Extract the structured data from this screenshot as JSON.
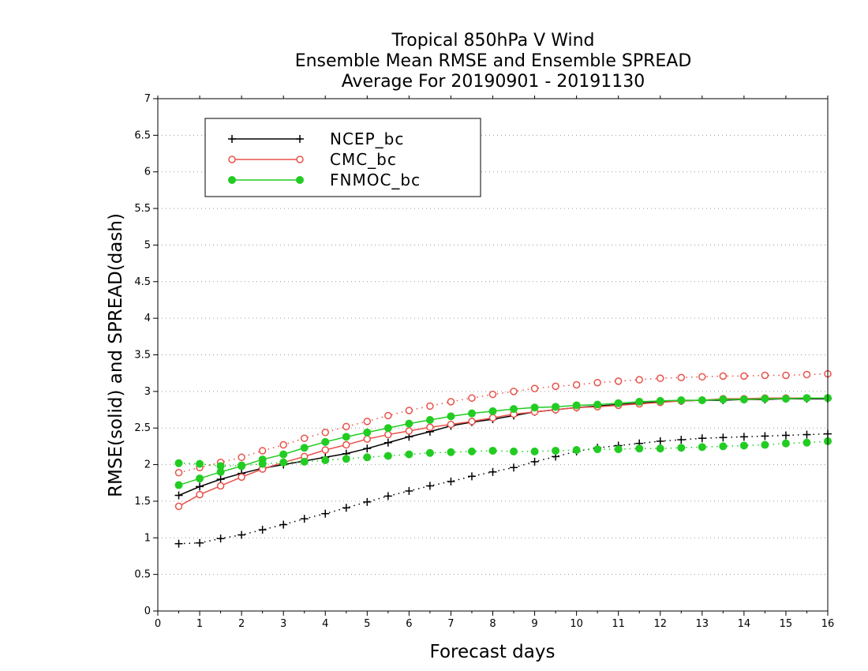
{
  "chart_data": {
    "type": "line",
    "title": [
      "Tropical 850hPa V Wind",
      "Ensemble Mean RMSE and Ensemble SPREAD",
      "Average For 20190901 - 20191130"
    ],
    "xlabel": "Forecast days",
    "ylabel": "RMSE(solid) and SPREAD(dash)",
    "xlim": [
      0,
      16
    ],
    "ylim": [
      0,
      7
    ],
    "xticks": [
      "0",
      "1",
      "2",
      "3",
      "4",
      "5",
      "6",
      "7",
      "8",
      "9",
      "10",
      "11",
      "12",
      "13",
      "14",
      "15",
      "16"
    ],
    "yticks": [
      "0",
      "0.5",
      "1",
      "1.5",
      "2",
      "2.5",
      "3",
      "3.5",
      "4",
      "4.5",
      "5",
      "5.5",
      "6",
      "6.5",
      "7"
    ],
    "grid": "horizontal dotted",
    "legend_position": "top-left",
    "x": [
      0.5,
      1,
      1.5,
      2,
      2.5,
      3,
      3.5,
      4,
      4.5,
      5,
      5.5,
      6,
      6.5,
      7,
      7.5,
      8,
      8.5,
      9,
      9.5,
      10,
      10.5,
      11,
      11.5,
      12,
      12.5,
      13,
      13.5,
      14,
      14.5,
      15,
      15.5,
      16
    ],
    "series": [
      {
        "name": "NCEP_bc",
        "color": "#000000",
        "marker": "plus",
        "rmse": [
          1.58,
          1.7,
          1.8,
          1.88,
          1.95,
          2.0,
          2.05,
          2.1,
          2.15,
          2.22,
          2.3,
          2.38,
          2.45,
          2.53,
          2.58,
          2.62,
          2.67,
          2.72,
          2.75,
          2.78,
          2.8,
          2.82,
          2.84,
          2.86,
          2.87,
          2.88,
          2.88,
          2.89,
          2.89,
          2.9,
          2.9,
          2.9
        ],
        "spread": [
          0.92,
          0.93,
          0.99,
          1.04,
          1.11,
          1.18,
          1.26,
          1.33,
          1.41,
          1.49,
          1.57,
          1.64,
          1.71,
          1.77,
          1.84,
          1.9,
          1.96,
          2.04,
          2.11,
          2.18,
          2.23,
          2.26,
          2.29,
          2.32,
          2.34,
          2.36,
          2.37,
          2.38,
          2.39,
          2.4,
          2.41,
          2.42
        ]
      },
      {
        "name": "CMC_bc",
        "color": "#e8524a",
        "marker": "open-circle",
        "rmse": [
          1.43,
          1.59,
          1.71,
          1.83,
          1.94,
          2.03,
          2.11,
          2.2,
          2.27,
          2.35,
          2.41,
          2.46,
          2.51,
          2.55,
          2.59,
          2.64,
          2.69,
          2.72,
          2.75,
          2.78,
          2.79,
          2.81,
          2.83,
          2.85,
          2.87,
          2.88,
          2.9,
          2.9,
          2.91,
          2.91,
          2.91,
          2.91
        ],
        "spread": [
          1.89,
          1.96,
          2.03,
          2.1,
          2.19,
          2.27,
          2.36,
          2.44,
          2.52,
          2.59,
          2.67,
          2.74,
          2.8,
          2.86,
          2.91,
          2.96,
          3.0,
          3.04,
          3.07,
          3.09,
          3.12,
          3.14,
          3.16,
          3.18,
          3.19,
          3.2,
          3.21,
          3.21,
          3.22,
          3.22,
          3.23,
          3.24
        ]
      },
      {
        "name": "FNMOC_bc",
        "color": "#22cc22",
        "marker": "filled-circle",
        "rmse": [
          1.72,
          1.81,
          1.9,
          1.98,
          2.07,
          2.14,
          2.23,
          2.31,
          2.38,
          2.44,
          2.5,
          2.56,
          2.61,
          2.66,
          2.7,
          2.73,
          2.76,
          2.78,
          2.79,
          2.81,
          2.82,
          2.84,
          2.86,
          2.87,
          2.88,
          2.88,
          2.89,
          2.89,
          2.9,
          2.9,
          2.91,
          2.91
        ],
        "spread": [
          2.02,
          2.01,
          1.98,
          1.99,
          2.01,
          2.03,
          2.04,
          2.06,
          2.08,
          2.1,
          2.12,
          2.14,
          2.16,
          2.17,
          2.18,
          2.19,
          2.18,
          2.18,
          2.19,
          2.2,
          2.21,
          2.21,
          2.22,
          2.22,
          2.23,
          2.24,
          2.25,
          2.26,
          2.27,
          2.29,
          2.3,
          2.32
        ]
      }
    ]
  }
}
